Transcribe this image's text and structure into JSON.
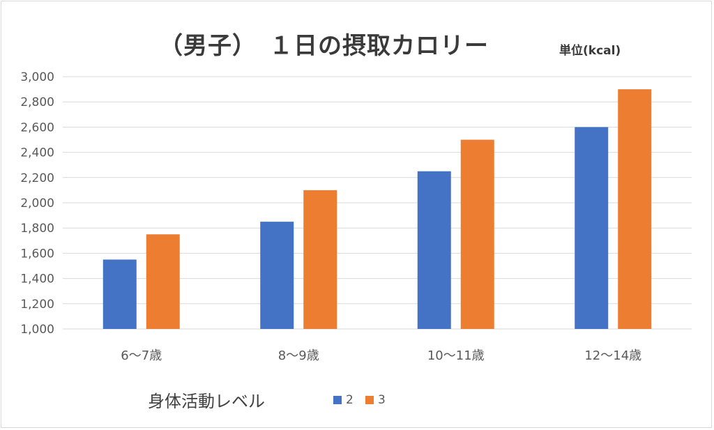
{
  "chart_data": {
    "type": "bar",
    "title": "（男子）　１日の摂取カロリー",
    "unit": "単位(kcal)",
    "categories": [
      "6〜7歳",
      "8〜9歳",
      "10〜11歳",
      "12〜14歳"
    ],
    "series": [
      {
        "name": "2",
        "values": [
          1550,
          1850,
          2250,
          2600
        ],
        "color": "#4472c4"
      },
      {
        "name": "3",
        "values": [
          1750,
          2100,
          2500,
          2900
        ],
        "color": "#ed7d31"
      }
    ],
    "ylim": [
      1000,
      3000
    ],
    "yticks": [
      "1,000",
      "1,200",
      "1,400",
      "1,600",
      "1,800",
      "2,000",
      "2,200",
      "2,400",
      "2,600",
      "2,800",
      "3,000"
    ],
    "grid": true,
    "legend_title": "身体活動レベル",
    "legend_position": "bottom"
  }
}
